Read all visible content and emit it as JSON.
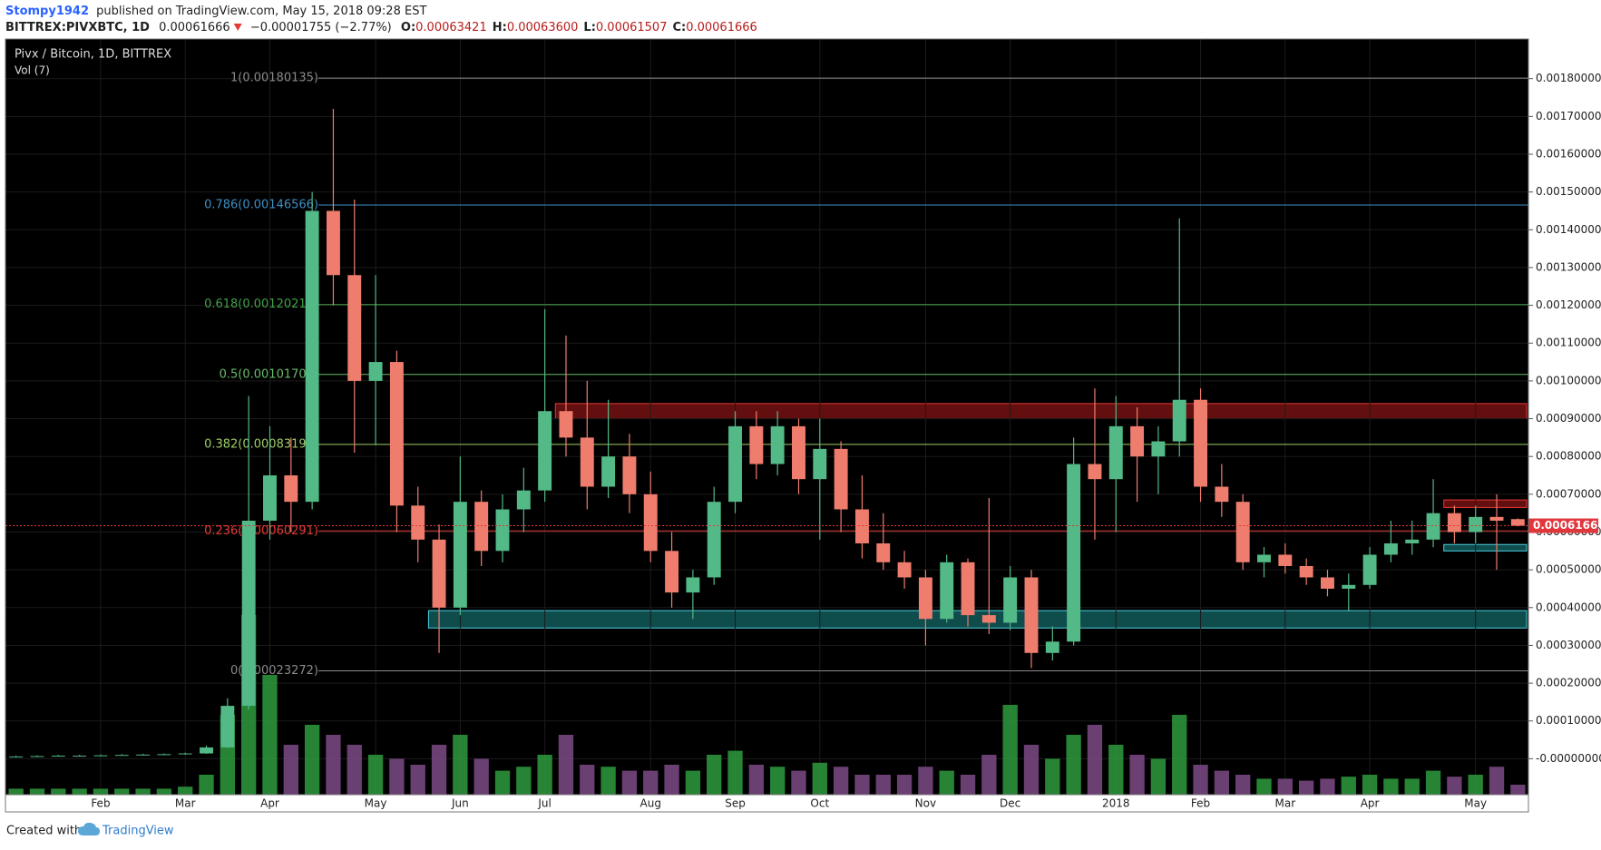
{
  "header": {
    "author": "Stompy1942",
    "published": "published on TradingView.com, May 15, 2018 09:28 EST",
    "symbol": "BITTREX:PIVXBTC, 1D",
    "last": "0.00061666",
    "change": "−0.00001755 (−2.77%)",
    "ohlc": [
      {
        "label": "O:",
        "value": "0.00063421"
      },
      {
        "label": "H:",
        "value": "0.00063600"
      },
      {
        "label": "L:",
        "value": "0.00061507"
      },
      {
        "label": "C:",
        "value": "0.00061666"
      }
    ]
  },
  "footer": {
    "created": "Created with",
    "brand": "TradingView"
  },
  "chart_data": {
    "type": "candlestick",
    "title": "Pivx / Bitcoin, 1D, BITTREX",
    "subtitle": "Vol (7)",
    "categories": [
      null,
      null,
      null,
      null,
      "Feb",
      null,
      null,
      null,
      "Mar",
      null,
      null,
      null,
      "Apr",
      null,
      null,
      null,
      null,
      "May",
      null,
      null,
      null,
      "Jun",
      null,
      null,
      null,
      "Jul",
      null,
      null,
      null,
      null,
      "Aug",
      null,
      null,
      null,
      "Sep",
      null,
      null,
      null,
      "Oct",
      null,
      null,
      null,
      null,
      "Nov",
      null,
      null,
      null,
      "Dec",
      null,
      null,
      null,
      null,
      "2018",
      null,
      null,
      null,
      "Feb",
      null,
      null,
      null,
      "Mar",
      null,
      null,
      null,
      "Apr",
      null,
      null,
      null,
      null,
      "May",
      null,
      null
    ],
    "open": [
      5e-06,
      6e-06,
      7e-06,
      8e-06,
      8e-06,
      9e-06,
      1e-05,
      1.1e-05,
      1.2e-05,
      1.4e-05,
      3e-05,
      0.00014,
      0.00063,
      0.00075,
      0.00068,
      0.00145,
      0.00128,
      0.001,
      0.00105,
      0.00067,
      0.00058,
      0.0004,
      0.00068,
      0.00055,
      0.00066,
      0.00071,
      0.00092,
      0.00085,
      0.00072,
      0.0008,
      0.0007,
      0.00055,
      0.00044,
      0.00048,
      0.00068,
      0.00088,
      0.00078,
      0.00088,
      0.00074,
      0.00082,
      0.00066,
      0.00057,
      0.00052,
      0.00048,
      0.00037,
      0.00052,
      0.00038,
      0.00036,
      0.00048,
      0.00028,
      0.00031,
      0.00078,
      0.00074,
      0.00088,
      0.0008,
      0.00084,
      0.00095,
      0.00072,
      0.00068,
      0.00052,
      0.00054,
      0.00051,
      0.00048,
      0.00045,
      0.00046,
      0.00054,
      0.00057,
      0.00058,
      0.00065,
      0.0006,
      0.00064,
      0.00063421
    ],
    "high": [
      8e-06,
      9e-06,
      1e-05,
      1e-05,
      1.1e-05,
      1.2e-05,
      1.3e-05,
      1.4e-05,
      1.6e-05,
      3.5e-05,
      0.00016,
      0.00096,
      0.00088,
      0.00085,
      0.0015,
      0.00172,
      0.00148,
      0.00128,
      0.00108,
      0.00072,
      0.00062,
      0.0008,
      0.00071,
      0.0007,
      0.00077,
      0.00119,
      0.00112,
      0.001,
      0.00095,
      0.00086,
      0.00076,
      0.0006,
      0.0005,
      0.00072,
      0.00092,
      0.00092,
      0.00092,
      0.0009,
      0.0009,
      0.00084,
      0.00075,
      0.00065,
      0.00055,
      0.0005,
      0.00054,
      0.00053,
      0.00069,
      0.00051,
      0.0005,
      0.00035,
      0.00085,
      0.00098,
      0.00096,
      0.00093,
      0.00088,
      0.00143,
      0.00098,
      0.00078,
      0.0007,
      0.00056,
      0.00057,
      0.00053,
      0.0005,
      0.00049,
      0.00056,
      0.00063,
      0.00063,
      0.00074,
      0.00067,
      0.00067,
      0.0007,
      0.000636
    ],
    "low": [
      4e-06,
      5e-06,
      6e-06,
      7e-06,
      7e-06,
      8e-06,
      9e-06,
      1e-05,
      1.1e-05,
      1.3e-05,
      2.8e-05,
      0.00013,
      0.00058,
      0.0006,
      0.00066,
      0.0012,
      0.00081,
      0.00083,
      0.0006,
      0.00052,
      0.00028,
      0.00038,
      0.00051,
      0.00052,
      0.0006,
      0.00068,
      0.0008,
      0.00066,
      0.00069,
      0.00065,
      0.00052,
      0.0004,
      0.00037,
      0.00046,
      0.00065,
      0.00074,
      0.00075,
      0.0007,
      0.00058,
      0.0006,
      0.00053,
      0.0005,
      0.00045,
      0.0003,
      0.00036,
      0.00035,
      0.00033,
      0.00034,
      0.00024,
      0.00026,
      0.0003,
      0.00058,
      0.0006,
      0.00068,
      0.0007,
      0.0008,
      0.00068,
      0.00064,
      0.0005,
      0.00048,
      0.00049,
      0.00046,
      0.00043,
      0.00039,
      0.00045,
      0.00052,
      0.00054,
      0.00056,
      0.00057,
      0.00057,
      0.0005,
      0.00061507
    ],
    "close": [
      6e-06,
      7e-06,
      8e-06,
      8e-06,
      9e-06,
      1e-05,
      1.1e-05,
      1.2e-05,
      1.4e-05,
      3e-05,
      0.00014,
      0.00063,
      0.00075,
      0.00068,
      0.00145,
      0.00128,
      0.001,
      0.00105,
      0.00067,
      0.00058,
      0.0004,
      0.00068,
      0.00055,
      0.00066,
      0.00071,
      0.00092,
      0.00085,
      0.00072,
      0.0008,
      0.0007,
      0.00055,
      0.00044,
      0.00048,
      0.00068,
      0.00088,
      0.00078,
      0.00088,
      0.00074,
      0.00082,
      0.00066,
      0.00057,
      0.00052,
      0.00048,
      0.00037,
      0.00052,
      0.00038,
      0.00036,
      0.00048,
      0.00028,
      0.00031,
      0.00078,
      0.00074,
      0.00088,
      0.0008,
      0.00084,
      0.00095,
      0.00072,
      0.00068,
      0.00052,
      0.00054,
      0.00051,
      0.00048,
      0.00045,
      0.00046,
      0.00054,
      0.00057,
      0.00058,
      0.00065,
      0.0006,
      0.00064,
      0.00063,
      0.00061666
    ],
    "volume": [
      3,
      3,
      3,
      3,
      3,
      3,
      3,
      3,
      4,
      10,
      40,
      90,
      60,
      25,
      35,
      30,
      25,
      20,
      18,
      15,
      25,
      30,
      18,
      12,
      14,
      20,
      30,
      15,
      14,
      12,
      12,
      15,
      12,
      20,
      22,
      15,
      14,
      12,
      16,
      14,
      10,
      10,
      10,
      14,
      12,
      10,
      20,
      45,
      25,
      18,
      30,
      35,
      25,
      20,
      18,
      40,
      15,
      12,
      10,
      8,
      8,
      7,
      8,
      9,
      10,
      8,
      8,
      12,
      9,
      10,
      14,
      5
    ],
    "up_color": "#53b987",
    "down_color": "#ef7d6d",
    "volume_up_color": "#2e9b3e",
    "volume_down_color": "#7d4a86",
    "ylim": [
      -9.51e-05,
      0.0019049
    ],
    "yticks": [
      {
        "value": 0.0018,
        "label": "0.00180000"
      },
      {
        "value": 0.0017,
        "label": "0.00170000"
      },
      {
        "value": 0.0016,
        "label": "0.00160000"
      },
      {
        "value": 0.0015,
        "label": "0.00150000"
      },
      {
        "value": 0.0014,
        "label": "0.00140000"
      },
      {
        "value": 0.0013,
        "label": "0.00130000"
      },
      {
        "value": 0.0012,
        "label": "0.00120000"
      },
      {
        "value": 0.0011,
        "label": "0.00110000"
      },
      {
        "value": 0.001,
        "label": "0.00100000"
      },
      {
        "value": 0.0009,
        "label": "0.00090000"
      },
      {
        "value": 0.0008,
        "label": "0.00080000"
      },
      {
        "value": 0.0007,
        "label": "0.00070000"
      },
      {
        "value": 0.0006,
        "label": "0.00060000"
      },
      {
        "value": 0.0005,
        "label": "0.00050000"
      },
      {
        "value": 0.0004,
        "label": "0.00040000"
      },
      {
        "value": 0.0003,
        "label": "0.00030000"
      },
      {
        "value": 0.0002,
        "label": "0.00020000"
      },
      {
        "value": 0.0001,
        "label": "0.00010000"
      },
      {
        "value": 0,
        "label": "-0.00000000"
      }
    ],
    "grid": true,
    "fib_levels": [
      {
        "label": "1(0.00180135)",
        "value": 0.00180135,
        "color": "#8a8a8a"
      },
      {
        "label": "0.786(0.00146566)",
        "value": 0.00146566,
        "color": "#3e8fc5"
      },
      {
        "label": "0.618(0.00120211)",
        "value": 0.00120211,
        "color": "#43a047"
      },
      {
        "label": "0.5(0.00101703)",
        "value": 0.00101703,
        "color": "#66bb6a"
      },
      {
        "label": "0.382(0.00083193)",
        "value": 0.00083193,
        "color": "#9ccc65"
      },
      {
        "label": "0.236(0.00060291)",
        "value": 0.00060291,
        "color": "#e53935"
      },
      {
        "label": "0(0.00023272)",
        "value": 0.00023272,
        "color": "#8a8a8a"
      }
    ],
    "zones": [
      {
        "low": 0.0009,
        "high": 0.00094,
        "color": "#b71c1c"
      },
      {
        "low": 0.000346,
        "high": 0.000392,
        "color": "#1c8a8a"
      },
      {
        "low": 0.000665,
        "high": 0.000685,
        "color": "#b71c1c"
      },
      {
        "low": 0.00055,
        "high": 0.000567,
        "color": "#1c8a8a"
      }
    ],
    "last_price": 0.00061666,
    "last_price_color": "#e0373c"
  }
}
